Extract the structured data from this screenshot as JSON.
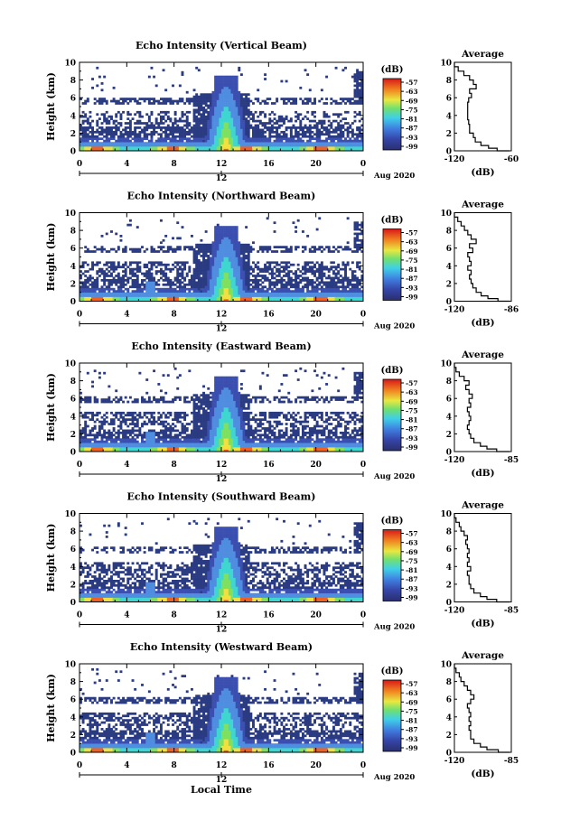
{
  "figure": {
    "xlabel": "Local Time",
    "colors": {
      "noecho": "#ffffff",
      "low": "#2a3b82",
      "mid1": "#3b4fb0",
      "mid2": "#4f8de0",
      "mid3": "#3fd6d0",
      "hot1": "#7fe060",
      "hot2": "#f0e040",
      "hot3": "#f06020",
      "hot4": "#d01010"
    }
  },
  "chart_data": [
    {
      "type": "heatmap",
      "title": "Echo Intensity (Vertical Beam)",
      "ylabel": "Height (km)",
      "xlim": [
        0,
        24
      ],
      "ylim": [
        0,
        10
      ],
      "xticks": [
        "0",
        "4",
        "8",
        "12",
        "16",
        "20",
        "0"
      ],
      "yticks": [
        "0",
        "2",
        "4",
        "6",
        "8",
        "10"
      ],
      "date_tick_label": "12",
      "date_label": "Aug 2020",
      "colorbar_unit": "(dB)",
      "colorbar_ticks": [
        "-57",
        "-63",
        "-69",
        "-75",
        "-81",
        "-87",
        "-93",
        "-99"
      ],
      "profile": {
        "title": "Average",
        "xlabel": "(dB)",
        "xticks": [
          "-120",
          "-60"
        ],
        "xlim": [
          -120,
          -60
        ],
        "yticks": [
          "0",
          "2",
          "4",
          "6",
          "8",
          "10"
        ],
        "ylim": [
          0,
          10
        ],
        "heights": [
          0,
          0.3,
          0.6,
          1,
          1.5,
          2,
          2.5,
          3,
          3.5,
          4,
          4.5,
          5,
          5.5,
          6,
          6.5,
          7,
          7.5,
          8,
          8.5,
          9,
          9.5,
          10
        ],
        "values": [
          -62,
          -75,
          -84,
          -92,
          -98,
          -100,
          -104,
          -104,
          -105,
          -106,
          -106,
          -106,
          -106,
          -105,
          -102,
          -104,
          -97,
          -100,
          -104,
          -110,
          -116,
          -120
        ]
      }
    },
    {
      "type": "heatmap",
      "title": "Echo Intensity (Northward Beam)",
      "ylabel": "Height (km)",
      "xlim": [
        0,
        24
      ],
      "ylim": [
        0,
        10
      ],
      "xticks": [
        "0",
        "4",
        "8",
        "12",
        "16",
        "20",
        "0"
      ],
      "yticks": [
        "0",
        "2",
        "4",
        "6",
        "8",
        "10"
      ],
      "date_tick_label": "12",
      "date_label": "Aug 2020",
      "colorbar_unit": "(dB)",
      "colorbar_ticks": [
        "-57",
        "-63",
        "-69",
        "-75",
        "-81",
        "-87",
        "-93",
        "-99"
      ],
      "profile": {
        "title": "Average",
        "xlabel": "(dB)",
        "xticks": [
          "-120",
          "-86"
        ],
        "xlim": [
          -120,
          -86
        ],
        "yticks": [
          "0",
          "2",
          "4",
          "6",
          "8",
          "10"
        ],
        "ylim": [
          0,
          10
        ],
        "heights": [
          0,
          0.3,
          0.6,
          1,
          1.5,
          2,
          2.5,
          3,
          3.5,
          4,
          4.5,
          5,
          5.5,
          6,
          6.5,
          7,
          7.5,
          8,
          8.5,
          9,
          9.5,
          10
        ],
        "values": [
          -87,
          -94,
          -100,
          -104,
          -107,
          -109,
          -110,
          -111,
          -110,
          -112,
          -110,
          -111,
          -112,
          -109,
          -111,
          -107,
          -110,
          -112,
          -114,
          -116,
          -118,
          -120
        ]
      }
    },
    {
      "type": "heatmap",
      "title": "Echo Intensity (Eastward Beam)",
      "ylabel": "Height (km)",
      "xlim": [
        0,
        24
      ],
      "ylim": [
        0,
        10
      ],
      "xticks": [
        "0",
        "4",
        "8",
        "12",
        "16",
        "20",
        "0"
      ],
      "yticks": [
        "0",
        "2",
        "4",
        "6",
        "8",
        "10"
      ],
      "date_tick_label": "12",
      "date_label": "Aug 2020",
      "colorbar_unit": "(dB)",
      "colorbar_ticks": [
        "-57",
        "-63",
        "-69",
        "-75",
        "-81",
        "-87",
        "-93",
        "-99"
      ],
      "profile": {
        "title": "Average",
        "xlabel": "(dB)",
        "xticks": [
          "-120",
          "-85"
        ],
        "xlim": [
          -120,
          -85
        ],
        "yticks": [
          "0",
          "2",
          "4",
          "6",
          "8",
          "10"
        ],
        "ylim": [
          0,
          10
        ],
        "heights": [
          0,
          0.3,
          0.6,
          1,
          1.5,
          2,
          2.5,
          3,
          3.5,
          4,
          4.5,
          5,
          5.5,
          6,
          6.5,
          7,
          7.5,
          8,
          8.5,
          9,
          9.5,
          10
        ],
        "values": [
          -86,
          -94,
          -100,
          -104,
          -108,
          -110,
          -111,
          -112,
          -111,
          -110,
          -111,
          -112,
          -110,
          -111,
          -109,
          -111,
          -113,
          -111,
          -114,
          -117,
          -119,
          -120
        ]
      }
    },
    {
      "type": "heatmap",
      "title": "Echo Intensity (Southward Beam)",
      "ylabel": "Height (km)",
      "xlim": [
        0,
        24
      ],
      "ylim": [
        0,
        10
      ],
      "xticks": [
        "0",
        "4",
        "8",
        "12",
        "16",
        "20",
        "0"
      ],
      "yticks": [
        "0",
        "2",
        "4",
        "6",
        "8",
        "10"
      ],
      "date_tick_label": "12",
      "date_label": "Aug 2020",
      "colorbar_unit": "(dB)",
      "colorbar_ticks": [
        "-57",
        "-63",
        "-69",
        "-75",
        "-81",
        "-87",
        "-93",
        "-99"
      ],
      "profile": {
        "title": "Average",
        "xlabel": "(dB)",
        "xticks": [
          "-120",
          "-85"
        ],
        "xlim": [
          -120,
          -85
        ],
        "yticks": [
          "0",
          "2",
          "4",
          "6",
          "8",
          "10"
        ],
        "ylim": [
          0,
          10
        ],
        "heights": [
          0,
          0.3,
          0.6,
          1,
          1.5,
          2,
          2.5,
          3,
          3.5,
          4,
          4.5,
          5,
          5.5,
          6,
          6.5,
          7,
          7.5,
          8,
          8.5,
          9,
          9.5,
          10
        ],
        "values": [
          -86,
          -94,
          -100,
          -104,
          -108,
          -110,
          -111,
          -111,
          -112,
          -110,
          -112,
          -111,
          -112,
          -111,
          -112,
          -113,
          -112,
          -114,
          -116,
          -117,
          -119,
          -120
        ]
      }
    },
    {
      "type": "heatmap",
      "title": "Echo Intensity (Westward Beam)",
      "ylabel": "Height (km)",
      "xlim": [
        0,
        24
      ],
      "ylim": [
        0,
        10
      ],
      "xticks": [
        "0",
        "4",
        "8",
        "12",
        "16",
        "20",
        "0"
      ],
      "yticks": [
        "0",
        "2",
        "4",
        "6",
        "8",
        "10"
      ],
      "date_tick_label": "12",
      "date_label": "Aug 2020",
      "colorbar_unit": "(dB)",
      "colorbar_ticks": [
        "-57",
        "-63",
        "-69",
        "-75",
        "-81",
        "-87",
        "-93",
        "-99"
      ],
      "profile": {
        "title": "Average",
        "xlabel": "(dB)",
        "xticks": [
          "-120",
          "-85"
        ],
        "xlim": [
          -120,
          -85
        ],
        "yticks": [
          "0",
          "2",
          "4",
          "6",
          "8",
          "10"
        ],
        "ylim": [
          0,
          10
        ],
        "heights": [
          0,
          0.3,
          0.6,
          1,
          1.5,
          2,
          2.5,
          3,
          3.5,
          4,
          4.5,
          5,
          5.5,
          6,
          6.5,
          7,
          7.5,
          8,
          8.5,
          9,
          9.5,
          10
        ],
        "values": [
          -86,
          -93,
          -100,
          -104,
          -108,
          -110,
          -110,
          -111,
          -110,
          -111,
          -110,
          -111,
          -112,
          -110,
          -108,
          -110,
          -112,
          -114,
          -116,
          -117,
          -119,
          -120
        ]
      }
    }
  ]
}
